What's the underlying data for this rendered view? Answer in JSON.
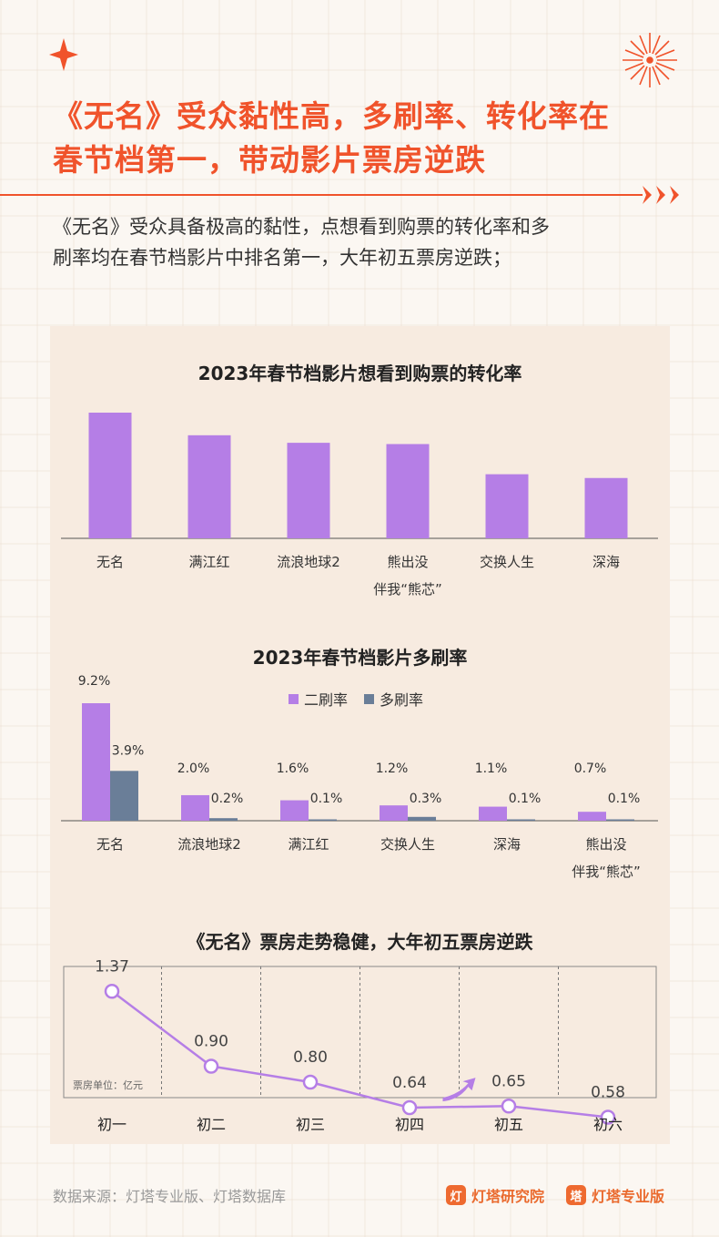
{
  "header": {
    "title_line1": "《无名》受众黏性高，多刷率、转化率在",
    "title_line2": "春节档第一，带动影片票房逆跌",
    "intro_line1": "《无名》受众具备极高的黏性，点想看到购票的转化率和多",
    "intro_line2": "刷率均在春节档影片中排名第一，大年初五票房逆跌；"
  },
  "colors": {
    "accent": "#f0532b",
    "purple": "#b57ee6",
    "slate": "#6a7e98",
    "card": "#f7ebe0"
  },
  "chart_data": [
    {
      "type": "bar",
      "title": "2023年春节档影片想看到购票的转化率",
      "categories": [
        "无名",
        "满江红",
        "流浪地球2",
        "熊出没\n伴我“熊芯”",
        "交换人生",
        "深海"
      ],
      "values": [
        100,
        82,
        76,
        75,
        51,
        48
      ],
      "ylim": [
        0,
        100
      ],
      "grid": false
    },
    {
      "type": "bar",
      "title": "2023年春节档影片多刷率",
      "categories": [
        "无名",
        "流浪地球2",
        "满江红",
        "交换人生",
        "深海",
        "熊出没\n伴我“熊芯”"
      ],
      "series": [
        {
          "name": "二刷率",
          "values": [
            9.2,
            2.0,
            1.6,
            1.2,
            1.1,
            0.7
          ],
          "labels": [
            "9.2%",
            "2.0%",
            "1.6%",
            "1.2%",
            "1.1%",
            "0.7%"
          ]
        },
        {
          "name": "多刷率",
          "values": [
            3.9,
            0.2,
            0.1,
            0.3,
            0.1,
            0.1
          ],
          "labels": [
            "3.9%",
            "0.2%",
            "0.1%",
            "0.3%",
            "0.1%",
            "0.1%"
          ]
        }
      ],
      "legend": "top-center",
      "grid": false
    },
    {
      "type": "line",
      "title": "《无名》票房走势稳健，大年初五票房逆跌",
      "categories": [
        "初一",
        "初二",
        "初三",
        "初四",
        "初五",
        "初六"
      ],
      "values": [
        1.37,
        0.9,
        0.8,
        0.64,
        0.65,
        0.58
      ],
      "labels": [
        "1.37",
        "0.90",
        "0.80",
        "0.64",
        "0.65",
        "0.58"
      ],
      "unit_note": "票房单位：亿元",
      "ylim": [
        0.4,
        1.6
      ],
      "grid": "vertical-dashed"
    }
  ],
  "footer": {
    "source": "数据来源：灯塔专业版、灯塔数据库",
    "brand1": "灯塔研究院",
    "brand2": "灯塔专业版"
  }
}
